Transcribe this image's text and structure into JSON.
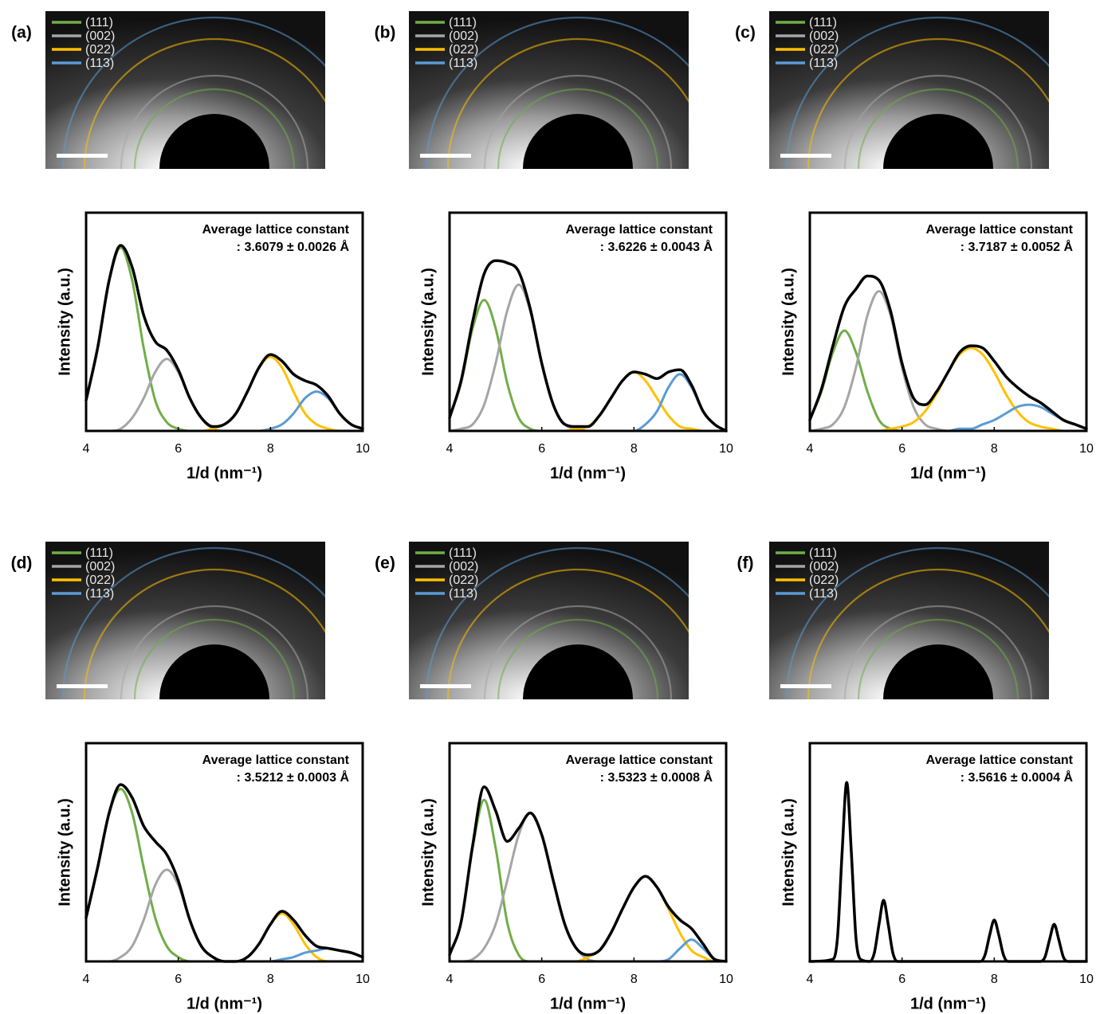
{
  "chart_data": [
    {
      "type": "line",
      "label": "(a)",
      "annotation": [
        "Average lattice constant",
        ": 3.6079 ± 0.0026 Å"
      ],
      "x_label": "1/d (nm⁻¹)",
      "y_label": "Intensity (a.u.)",
      "x": [
        4,
        4.25,
        4.5,
        4.75,
        5,
        5.25,
        5.5,
        5.75,
        6,
        6.25,
        6.5,
        6.75,
        7,
        7.25,
        7.5,
        7.75,
        8,
        8.25,
        8.5,
        8.75,
        9,
        9.25,
        9.5,
        9.75,
        10
      ],
      "xlim": [
        4,
        10
      ],
      "xticks": [
        4,
        6,
        8,
        10
      ],
      "ylim": [
        0,
        100
      ],
      "series": [
        {
          "name": "(111)",
          "color": "#70ad47",
          "values": [
            14,
            38,
            69,
            84,
            69,
            38,
            14,
            4,
            1,
            0,
            0,
            0,
            0,
            0,
            0,
            0,
            0,
            0,
            0,
            0,
            0,
            0,
            0,
            0,
            0
          ]
        },
        {
          "name": "(002)",
          "color": "#a5a5a5",
          "values": [
            0,
            0,
            0,
            1,
            6,
            15,
            27,
            33,
            27,
            15,
            6,
            1,
            0,
            0,
            0,
            0,
            0,
            0,
            0,
            0,
            0,
            0,
            0,
            0,
            0
          ]
        },
        {
          "name": "(022)",
          "color": "#ffc000",
          "values": [
            0,
            0,
            0,
            0,
            0,
            0,
            0,
            0,
            0,
            0,
            0,
            1,
            3,
            8,
            18,
            29,
            34,
            29,
            18,
            8,
            3,
            1,
            0,
            0,
            0
          ]
        },
        {
          "name": "(113)",
          "color": "#5b9bd5",
          "values": [
            0,
            0,
            0,
            0,
            0,
            0,
            0,
            0,
            0,
            0,
            0,
            0,
            0,
            0,
            0,
            0,
            1,
            3,
            8,
            15,
            18,
            15,
            8,
            3,
            1
          ]
        },
        {
          "color": "#000000",
          "values": [
            14,
            38,
            69,
            85,
            75,
            53,
            41,
            37,
            28,
            15,
            6,
            2,
            3,
            8,
            18,
            29,
            35,
            32,
            26,
            23,
            21,
            16,
            8,
            3,
            1
          ]
        }
      ]
    },
    {
      "type": "line",
      "label": "(b)",
      "annotation": [
        "Average lattice constant",
        ": 3.6226 ± 0.0043 Å"
      ],
      "x_label": "1/d (nm⁻¹)",
      "y_label": "Intensity (a.u.)",
      "x": [
        4,
        4.25,
        4.5,
        4.75,
        5,
        5.25,
        5.5,
        5.75,
        6,
        6.25,
        6.5,
        6.75,
        7,
        7.25,
        7.5,
        7.75,
        8,
        8.25,
        8.5,
        8.75,
        9,
        9.25,
        9.5,
        9.75,
        10
      ],
      "xlim": [
        4,
        10
      ],
      "xticks": [
        4,
        6,
        8,
        10
      ],
      "ylim": [
        0,
        100
      ],
      "series": [
        {
          "name": "(111)",
          "color": "#70ad47",
          "values": [
            6,
            22,
            47,
            60,
            47,
            22,
            6,
            1,
            0,
            0,
            0,
            0,
            0,
            0,
            0,
            0,
            0,
            0,
            0,
            0,
            0,
            0,
            0,
            0,
            0
          ]
        },
        {
          "name": "(002)",
          "color": "#a5a5a5",
          "values": [
            0,
            1,
            3,
            12,
            31,
            55,
            67,
            55,
            31,
            12,
            3,
            1,
            0,
            0,
            0,
            0,
            0,
            0,
            0,
            0,
            0,
            0,
            0,
            0,
            0
          ]
        },
        {
          "name": "(022)",
          "color": "#ffc000",
          "values": [
            0,
            0,
            0,
            0,
            0,
            0,
            0,
            0,
            0,
            0,
            0,
            1,
            2,
            7,
            15,
            23,
            27,
            23,
            15,
            7,
            2,
            1,
            0,
            0,
            0
          ]
        },
        {
          "name": "(113)",
          "color": "#5b9bd5",
          "values": [
            0,
            0,
            0,
            0,
            0,
            0,
            0,
            0,
            0,
            0,
            0,
            0,
            0,
            0,
            0,
            0,
            0,
            3,
            9,
            20,
            26,
            20,
            9,
            3,
            0
          ]
        },
        {
          "color": "#000000",
          "values": [
            6,
            23,
            50,
            72,
            78,
            77,
            73,
            56,
            31,
            12,
            3,
            2,
            2,
            7,
            15,
            23,
            27,
            26,
            24,
            27,
            28,
            21,
            9,
            3,
            0
          ]
        }
      ]
    },
    {
      "type": "line",
      "label": "(c)",
      "annotation": [
        "Average lattice constant",
        ": 3.7187 ± 0.0052 Å"
      ],
      "x_label": "1/d (nm⁻¹)",
      "y_label": "Intensity (a.u.)",
      "x": [
        4,
        4.25,
        4.5,
        4.75,
        5,
        5.25,
        5.5,
        5.75,
        6,
        6.25,
        6.5,
        6.75,
        7,
        7.25,
        7.5,
        7.75,
        8,
        8.25,
        8.5,
        8.75,
        9,
        9.25,
        9.5,
        9.75,
        10
      ],
      "xlim": [
        4,
        10
      ],
      "xticks": [
        4,
        6,
        8,
        10
      ],
      "ylim": [
        0,
        100
      ],
      "series": [
        {
          "name": "(111)",
          "color": "#70ad47",
          "values": [
            5,
            18,
            36,
            46,
            36,
            18,
            5,
            1,
            0,
            0,
            0,
            0,
            0,
            0,
            0,
            0,
            0,
            0,
            0,
            0,
            0,
            0,
            0,
            0,
            0
          ]
        },
        {
          "name": "(002)",
          "color": "#a5a5a5",
          "values": [
            0,
            1,
            3,
            11,
            29,
            53,
            64,
            53,
            29,
            11,
            3,
            1,
            0,
            0,
            0,
            0,
            0,
            0,
            0,
            0,
            0,
            0,
            0,
            0,
            0
          ]
        },
        {
          "name": "(022)",
          "color": "#ffc000",
          "values": [
            0,
            0,
            0,
            0,
            0,
            0,
            0,
            1,
            2,
            4,
            9,
            17,
            27,
            35,
            38,
            35,
            27,
            17,
            9,
            4,
            2,
            1,
            0,
            0,
            0
          ]
        },
        {
          "name": "(113)",
          "color": "#5b9bd5",
          "values": [
            0,
            0,
            0,
            0,
            0,
            0,
            0,
            0,
            0,
            0,
            0,
            0,
            0,
            1,
            1,
            3,
            5,
            8,
            11,
            12,
            11,
            8,
            5,
            3,
            1
          ]
        },
        {
          "color": "#000000",
          "values": [
            5,
            19,
            39,
            57,
            65,
            71,
            69,
            55,
            31,
            15,
            12,
            18,
            27,
            36,
            39,
            38,
            32,
            25,
            20,
            16,
            13,
            9,
            5,
            3,
            1
          ]
        }
      ]
    },
    {
      "type": "line",
      "label": "(d)",
      "annotation": [
        "Average lattice constant",
        ": 3.5212 ± 0.0003 Å"
      ],
      "x_label": "1/d (nm⁻¹)",
      "y_label": "Intensity (a.u.)",
      "x": [
        4,
        4.25,
        4.5,
        4.75,
        5,
        5.25,
        5.5,
        5.75,
        6,
        6.25,
        6.5,
        6.75,
        7,
        7.25,
        7.5,
        7.75,
        8,
        8.25,
        8.5,
        8.75,
        9,
        9.25,
        9.5,
        9.75,
        10
      ],
      "xlim": [
        4,
        10
      ],
      "xticks": [
        4,
        6,
        8,
        10
      ],
      "ylim": [
        0,
        100
      ],
      "series": [
        {
          "name": "(111)",
          "color": "#70ad47",
          "values": [
            20,
            43,
            68,
            79,
            68,
            43,
            20,
            7,
            2,
            0,
            0,
            0,
            0,
            0,
            0,
            0,
            0,
            0,
            0,
            0,
            0,
            0,
            0,
            0,
            0
          ]
        },
        {
          "name": "(002)",
          "color": "#a5a5a5",
          "values": [
            0,
            0,
            0,
            2,
            7,
            19,
            35,
            42,
            35,
            19,
            7,
            2,
            0,
            0,
            0,
            0,
            0,
            0,
            0,
            0,
            0,
            0,
            0,
            0,
            0
          ]
        },
        {
          "name": "(022)",
          "color": "#ffc000",
          "values": [
            0,
            0,
            0,
            0,
            0,
            0,
            0,
            0,
            0,
            0,
            0,
            0,
            0,
            0,
            2,
            8,
            17,
            22,
            17,
            8,
            2,
            0,
            0,
            0,
            0
          ]
        },
        {
          "name": "(113)",
          "color": "#5b9bd5",
          "values": [
            0,
            0,
            0,
            0,
            0,
            0,
            0,
            0,
            0,
            0,
            0,
            0,
            0,
            0,
            0,
            0,
            0,
            1,
            2,
            4,
            5,
            6,
            5,
            4,
            2
          ]
        },
        {
          "color": "#000000",
          "values": [
            20,
            43,
            68,
            81,
            75,
            62,
            55,
            49,
            37,
            19,
            7,
            2,
            0,
            0,
            2,
            8,
            17,
            23,
            19,
            12,
            7,
            6,
            5,
            4,
            2
          ]
        }
      ]
    },
    {
      "type": "line",
      "label": "(e)",
      "annotation": [
        "Average lattice constant",
        ": 3.5323 ± 0.0008 Å"
      ],
      "x_label": "1/d (nm⁻¹)",
      "y_label": "Intensity (a.u.)",
      "x": [
        4,
        4.25,
        4.5,
        4.75,
        5,
        5.25,
        5.5,
        5.75,
        6,
        6.25,
        6.5,
        6.75,
        7,
        7.25,
        7.5,
        7.75,
        8,
        8.25,
        8.5,
        8.75,
        9,
        9.25,
        9.5,
        9.75,
        10
      ],
      "xlim": [
        4,
        10
      ],
      "xticks": [
        4,
        6,
        8,
        10
      ],
      "ylim": [
        0,
        100
      ],
      "series": [
        {
          "name": "(111)",
          "color": "#70ad47",
          "values": [
            3,
            18,
            52,
            74,
            52,
            18,
            3,
            0,
            0,
            0,
            0,
            0,
            0,
            0,
            0,
            0,
            0,
            0,
            0,
            0,
            0,
            0,
            0,
            0,
            0
          ]
        },
        {
          "name": "(002)",
          "color": "#a5a5a5",
          "values": [
            0,
            0,
            1,
            6,
            17,
            37,
            58,
            68,
            58,
            37,
            17,
            6,
            1,
            0,
            0,
            0,
            0,
            0,
            0,
            0,
            0,
            0,
            0,
            0,
            0
          ]
        },
        {
          "name": "(022)",
          "color": "#ffc000",
          "values": [
            0,
            0,
            0,
            0,
            0,
            0,
            0,
            0,
            0,
            0,
            0,
            0,
            2,
            5,
            13,
            24,
            34,
            39,
            34,
            24,
            13,
            5,
            2,
            0,
            0
          ]
        },
        {
          "name": "(113)",
          "color": "#5b9bd5",
          "values": [
            0,
            0,
            0,
            0,
            0,
            0,
            0,
            0,
            0,
            0,
            0,
            0,
            0,
            0,
            0,
            0,
            0,
            0,
            0,
            1,
            6,
            10,
            6,
            1,
            0
          ]
        },
        {
          "color": "#000000",
          "values": [
            3,
            18,
            53,
            80,
            69,
            55,
            61,
            68,
            58,
            37,
            17,
            6,
            3,
            5,
            13,
            24,
            34,
            39,
            34,
            25,
            19,
            15,
            8,
            1,
            0
          ]
        }
      ]
    },
    {
      "type": "line",
      "label": "(f)",
      "annotation": [
        "Average lattice constant",
        ": 3.5616 ± 0.0004 Å"
      ],
      "x_label": "1/d (nm⁻¹)",
      "y_label": "Intensity (a.u.)",
      "x": [
        4,
        4.5,
        4.6,
        4.7,
        4.8,
        4.9,
        5.0,
        5.1,
        5.3,
        5.4,
        5.5,
        5.6,
        5.7,
        5.8,
        5.9,
        6.2,
        7.6,
        7.7,
        7.8,
        7.9,
        8.0,
        8.1,
        8.2,
        8.3,
        8.9,
        9.0,
        9.1,
        9.2,
        9.3,
        9.4,
        9.5,
        9.6,
        10
      ],
      "xlim": [
        4,
        10
      ],
      "xticks": [
        4,
        6,
        8,
        10
      ],
      "ylim": [
        0,
        100
      ],
      "series": [
        {
          "name": "(111)",
          "color": "#70ad47",
          "values": [
            0,
            1,
            11,
            50,
            82,
            50,
            11,
            1,
            0,
            0,
            0,
            0,
            0,
            0,
            0,
            0,
            0,
            0,
            0,
            0,
            0,
            0,
            0,
            0,
            0,
            0,
            0,
            0,
            0,
            0,
            0,
            0,
            0
          ]
        },
        {
          "name": "(002)",
          "color": "#a5a5a5",
          "values": [
            0,
            0,
            0,
            0,
            0,
            0,
            0,
            0,
            0,
            4,
            17,
            28,
            17,
            4,
            0,
            0,
            0,
            0,
            0,
            0,
            0,
            0,
            0,
            0,
            0,
            0,
            0,
            0,
            0,
            0,
            0,
            0,
            0
          ]
        },
        {
          "name": "(022)",
          "color": "#ffc000",
          "values": [
            0,
            0,
            0,
            0,
            0,
            0,
            0,
            0,
            0,
            0,
            0,
            0,
            0,
            0,
            0,
            0,
            0,
            0,
            3,
            12,
            19,
            12,
            3,
            0,
            0,
            0,
            0,
            0,
            0,
            0,
            0,
            0,
            0
          ]
        },
        {
          "name": "(113)",
          "color": "#5b9bd5",
          "values": [
            0,
            0,
            0,
            0,
            0,
            0,
            0,
            0,
            0,
            0,
            0,
            0,
            0,
            0,
            0,
            0,
            0,
            0,
            0,
            0,
            0,
            0,
            0,
            0,
            0,
            0,
            2,
            10,
            17,
            10,
            2,
            0,
            0
          ]
        },
        {
          "color": "#000000",
          "values": [
            0,
            1,
            11,
            50,
            82,
            50,
            11,
            1,
            0,
            4,
            17,
            28,
            17,
            4,
            0,
            0,
            0,
            0,
            3,
            12,
            19,
            12,
            3,
            0,
            0,
            0,
            2,
            10,
            17,
            10,
            2,
            0,
            0
          ]
        }
      ]
    }
  ]
}
